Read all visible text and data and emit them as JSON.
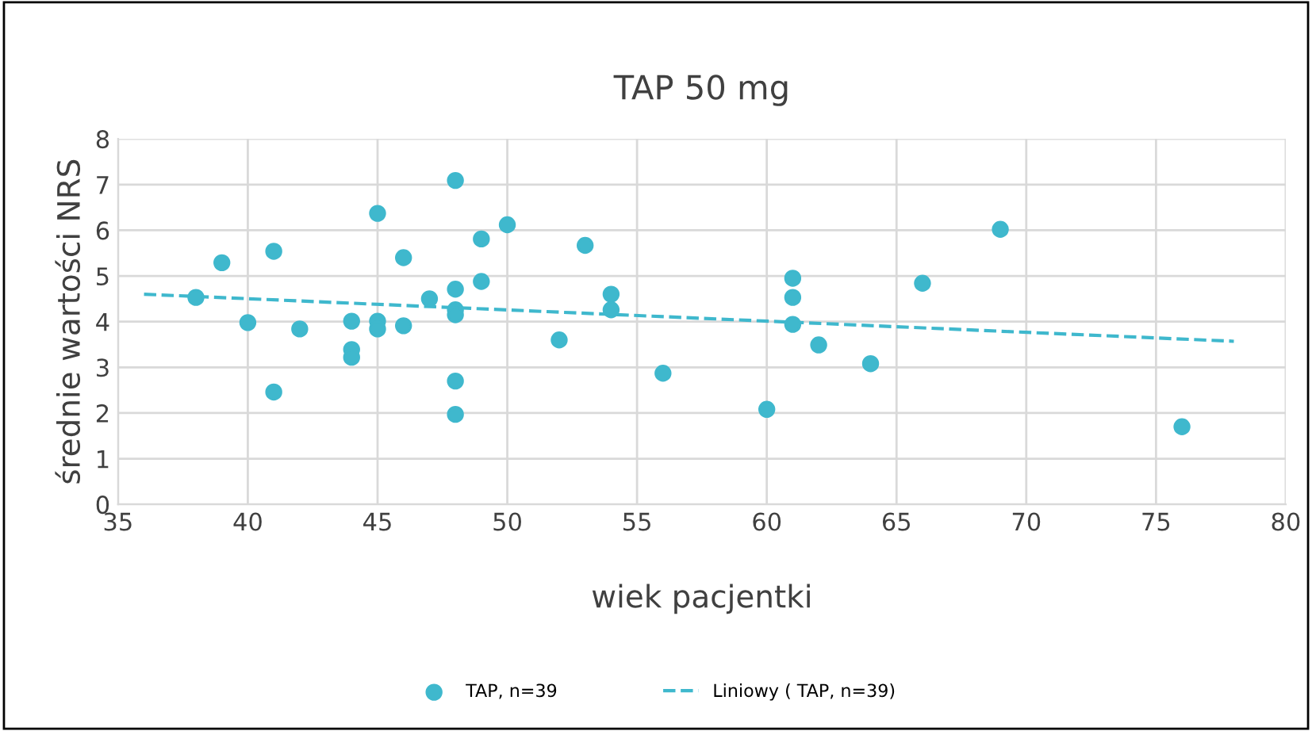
{
  "chart_data": {
    "type": "scatter",
    "title": "TAP 50 mg",
    "xlabel": "wiek pacjentki",
    "ylabel": "średnie wartości NRS",
    "xlim": [
      35,
      80
    ],
    "xticks": [
      35,
      40,
      45,
      50,
      55,
      60,
      65,
      70,
      75,
      80
    ],
    "ylim": [
      0,
      8
    ],
    "yticks": [
      0,
      1,
      2,
      3,
      4,
      5,
      6,
      7,
      8
    ],
    "grid": true,
    "legend": "bottom",
    "series": [
      {
        "name": "TAP, n=39",
        "color": "#3fb8cd",
        "marker": "circle",
        "x": [
          38,
          39,
          40,
          41,
          41,
          42,
          44,
          44,
          44,
          45,
          45,
          45,
          46,
          46,
          47,
          48,
          48,
          48,
          48,
          48,
          48,
          49,
          49,
          50,
          52,
          53,
          54,
          54,
          56,
          60,
          61,
          61,
          61,
          62,
          64,
          66,
          69,
          76
        ],
        "values": [
          4.53,
          5.29,
          3.98,
          5.54,
          2.46,
          3.84,
          4.01,
          3.39,
          3.22,
          6.37,
          4.01,
          3.84,
          5.4,
          3.91,
          4.5,
          7.09,
          4.71,
          4.26,
          4.15,
          2.7,
          1.97,
          5.81,
          4.88,
          6.12,
          3.6,
          5.67,
          4.6,
          4.26,
          2.87,
          2.08,
          4.95,
          4.53,
          3.94,
          3.49,
          3.08,
          4.84,
          6.02,
          1.7
        ]
      },
      {
        "name": "Liniowy ( TAP, n=39)",
        "color": "#3fb8cd",
        "type": "line",
        "line_style": "dashed",
        "x": [
          36,
          78
        ],
        "values": [
          4.6,
          3.57
        ]
      }
    ]
  }
}
